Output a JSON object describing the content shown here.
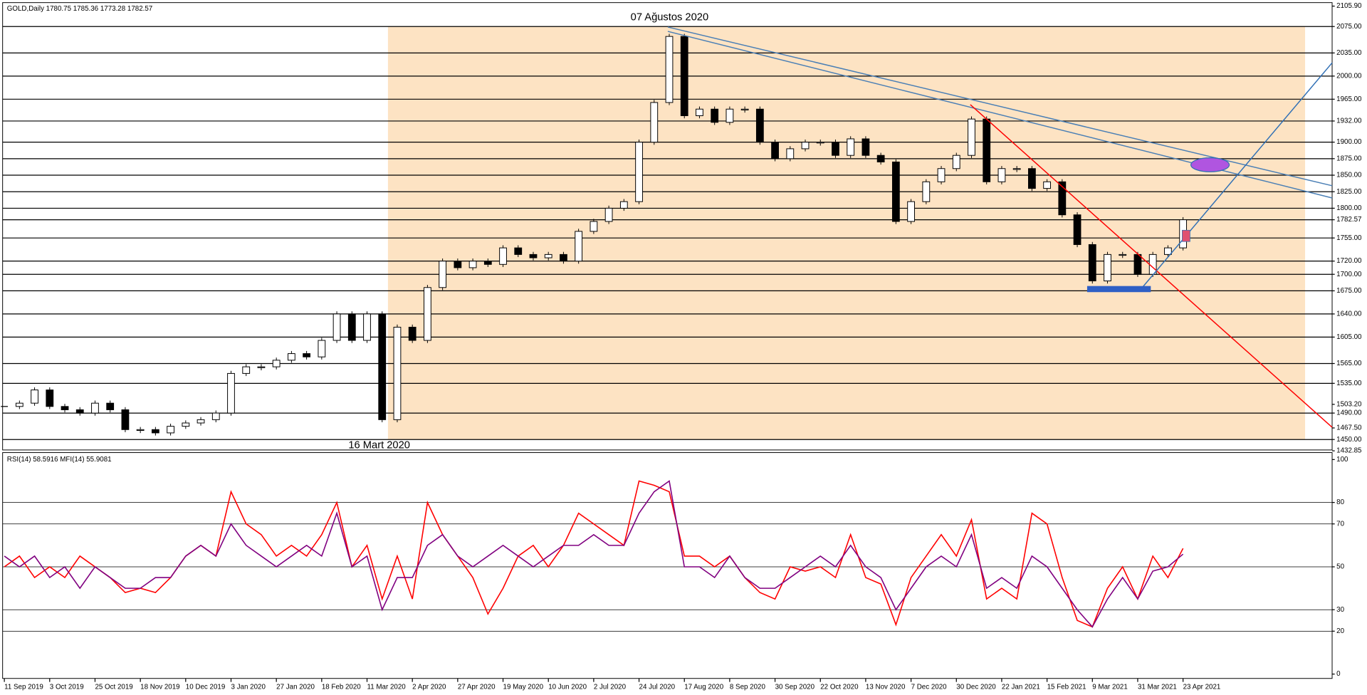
{
  "chart_data": [
    {
      "type": "candlestick",
      "header": "GOLD,Daily  1780.75 1785.36 1773.28 1782.57",
      "annotations": [
        "07 Ağustos 2020",
        "16 Mart 2020"
      ],
      "values": [
        1500,
        1505,
        1525,
        1500,
        1495,
        1490,
        1505,
        1495,
        1465,
        1465,
        1460,
        1470,
        1475,
        1480,
        1490,
        1550,
        1560,
        1560,
        1570,
        1580,
        1575,
        1600,
        1640,
        1600,
        1640,
        1480,
        1620,
        1600,
        1680,
        1720,
        1710,
        1720,
        1715,
        1740,
        1730,
        1725,
        1730,
        1720,
        1765,
        1780,
        1800,
        1810,
        1900,
        1960,
        2060,
        1940,
        1950,
        1930,
        1950,
        1950,
        1900,
        1875,
        1890,
        1900,
        1900,
        1880,
        1905,
        1880,
        1870,
        1780,
        1810,
        1840,
        1860,
        1880,
        1935,
        1840,
        1860,
        1860,
        1830,
        1840,
        1790,
        1745,
        1690,
        1730,
        1730,
        1700,
        1730,
        1740,
        1782.57
      ],
      "ylim": [
        1432.85,
        2105.9
      ],
      "yticks": [
        {
          "value": 2105.9,
          "label": "2105.90"
        },
        {
          "value": 2075,
          "label": "2075.00"
        },
        {
          "value": 2035,
          "label": "2035.00"
        },
        {
          "value": 2000,
          "label": "2000.00"
        },
        {
          "value": 1965,
          "label": "1965.00"
        },
        {
          "value": 1932,
          "label": "1932.00"
        },
        {
          "value": 1900,
          "label": "1900.00"
        },
        {
          "value": 1875,
          "label": "1875.00"
        },
        {
          "value": 1850,
          "label": "1850.00"
        },
        {
          "value": 1825,
          "label": "1825.00"
        },
        {
          "value": 1800,
          "label": "1800.00"
        },
        1782.57,
        {
          "value": 1755,
          "label": "1755.00"
        },
        {
          "value": 1720,
          "label": "1720.00"
        },
        {
          "value": 1700,
          "label": "1700.00"
        },
        {
          "value": 1675,
          "label": "1675.00"
        },
        {
          "value": 1640,
          "label": "1640.00"
        },
        {
          "value": 1605,
          "label": "1605.00"
        },
        {
          "value": 1565,
          "label": "1565.00"
        },
        {
          "value": 1535,
          "label": "1535.00"
        },
        {
          "value": 1503.2,
          "label": "1503.20"
        },
        {
          "value": 1490,
          "label": "1490.00"
        },
        {
          "value": 1467.5,
          "label": "1467.50"
        },
        {
          "value": 1450,
          "label": "1450.00"
        },
        1432.85
      ],
      "levels": [
        2075,
        2035,
        2000,
        1965,
        1932,
        1900,
        1875,
        1850,
        1825,
        1800,
        1782.57,
        1755,
        1720,
        1700,
        1675,
        1640,
        1605,
        1565,
        1535,
        1490,
        1450
      ]
    },
    {
      "type": "line",
      "header": "RSI(14) 58.5916  MFI(14) 55.9081",
      "series": [
        {
          "color": "#ff0000",
          "values": [
            50,
            55,
            45,
            50,
            45,
            55,
            50,
            45,
            38,
            40,
            38,
            45,
            55,
            60,
            55,
            85,
            70,
            65,
            55,
            60,
            55,
            65,
            80,
            50,
            60,
            35,
            55,
            35,
            80,
            65,
            55,
            45,
            28,
            40,
            55,
            60,
            50,
            60,
            75,
            70,
            65,
            60,
            90,
            88,
            85,
            55,
            55,
            50,
            55,
            45,
            38,
            35,
            50,
            48,
            50,
            45,
            65,
            45,
            42,
            23,
            45,
            55,
            65,
            55,
            72,
            35,
            40,
            35,
            75,
            70,
            45,
            25,
            22,
            40,
            50,
            35,
            55,
            45,
            58.5916
          ]
        },
        {
          "color": "#800080",
          "values": [
            55,
            50,
            55,
            45,
            50,
            40,
            50,
            45,
            40,
            40,
            45,
            45,
            55,
            60,
            55,
            70,
            60,
            55,
            50,
            55,
            60,
            55,
            75,
            50,
            55,
            30,
            45,
            45,
            60,
            65,
            55,
            50,
            55,
            60,
            55,
            50,
            55,
            60,
            60,
            65,
            60,
            60,
            75,
            85,
            90,
            50,
            50,
            45,
            55,
            45,
            40,
            40,
            45,
            50,
            55,
            50,
            60,
            50,
            45,
            30,
            40,
            50,
            55,
            50,
            65,
            40,
            45,
            40,
            55,
            50,
            40,
            30,
            22,
            35,
            45,
            35,
            48,
            50,
            55.9081
          ]
        }
      ],
      "ylim": [
        0,
        100
      ],
      "yticks": [
        100,
        80,
        70,
        50,
        30,
        20,
        0
      ],
      "levels": [
        80,
        70,
        50,
        30,
        20
      ],
      "categories": [
        "11 Sep 2019",
        null,
        null,
        "3 Oct 2019",
        null,
        null,
        "25 Oct 2019",
        null,
        null,
        "18 Nov 2019",
        null,
        null,
        "10 Dec 2019",
        null,
        null,
        "3 Jan 2020",
        null,
        null,
        "27 Jan 2020",
        null,
        null,
        "18 Feb 2020",
        null,
        null,
        "11 Mar 2020",
        null,
        null,
        "2 Apr 2020",
        null,
        null,
        "27 Apr 2020",
        null,
        null,
        "19 May 2020",
        null,
        null,
        "10 Jun 2020",
        null,
        null,
        "2 Jul 2020",
        null,
        null,
        "24 Jul 2020",
        null,
        null,
        "17 Aug 2020",
        null,
        null,
        "8 Sep 2020",
        null,
        null,
        "30 Sep 2020",
        null,
        null,
        "22 Oct 2020",
        null,
        null,
        "13 Nov 2020",
        null,
        null,
        "7 Dec 2020",
        null,
        null,
        "30 Dec 2020",
        null,
        null,
        "22 Jan 2021",
        null,
        null,
        "15 Feb 2021",
        null,
        null,
        "9 Mar 2021",
        null,
        null,
        "31 Mar 2021",
        null,
        null,
        "23 Apr 2021"
      ]
    }
  ]
}
